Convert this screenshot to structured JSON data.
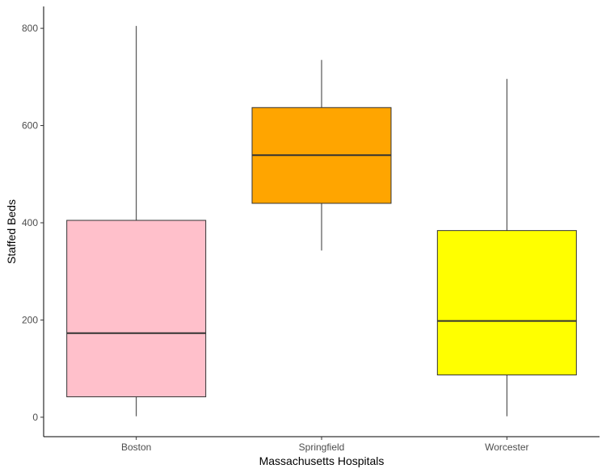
{
  "chart_data": {
    "type": "boxplot",
    "title": "",
    "xlabel": "Massachusetts Hospitals",
    "ylabel": "Staffed Beds",
    "categories": [
      "Boston",
      "Springfield",
      "Worcester"
    ],
    "boxes": [
      {
        "category": "Boston",
        "min": 2,
        "q1": 42,
        "median": 173,
        "q3": 405,
        "max": 805,
        "fill": "#FFC0CB"
      },
      {
        "category": "Springfield",
        "min": 343,
        "q1": 440,
        "median": 539,
        "q3": 637,
        "max": 735,
        "fill": "#FFA500"
      },
      {
        "category": "Worcester",
        "min": 2,
        "q1": 87,
        "median": 198,
        "q3": 384,
        "max": 696,
        "fill": "#FFFF00"
      }
    ],
    "yticks": [
      0,
      200,
      400,
      600,
      800
    ],
    "ylim": [
      -40,
      845
    ],
    "grid": false,
    "legend": "none"
  }
}
